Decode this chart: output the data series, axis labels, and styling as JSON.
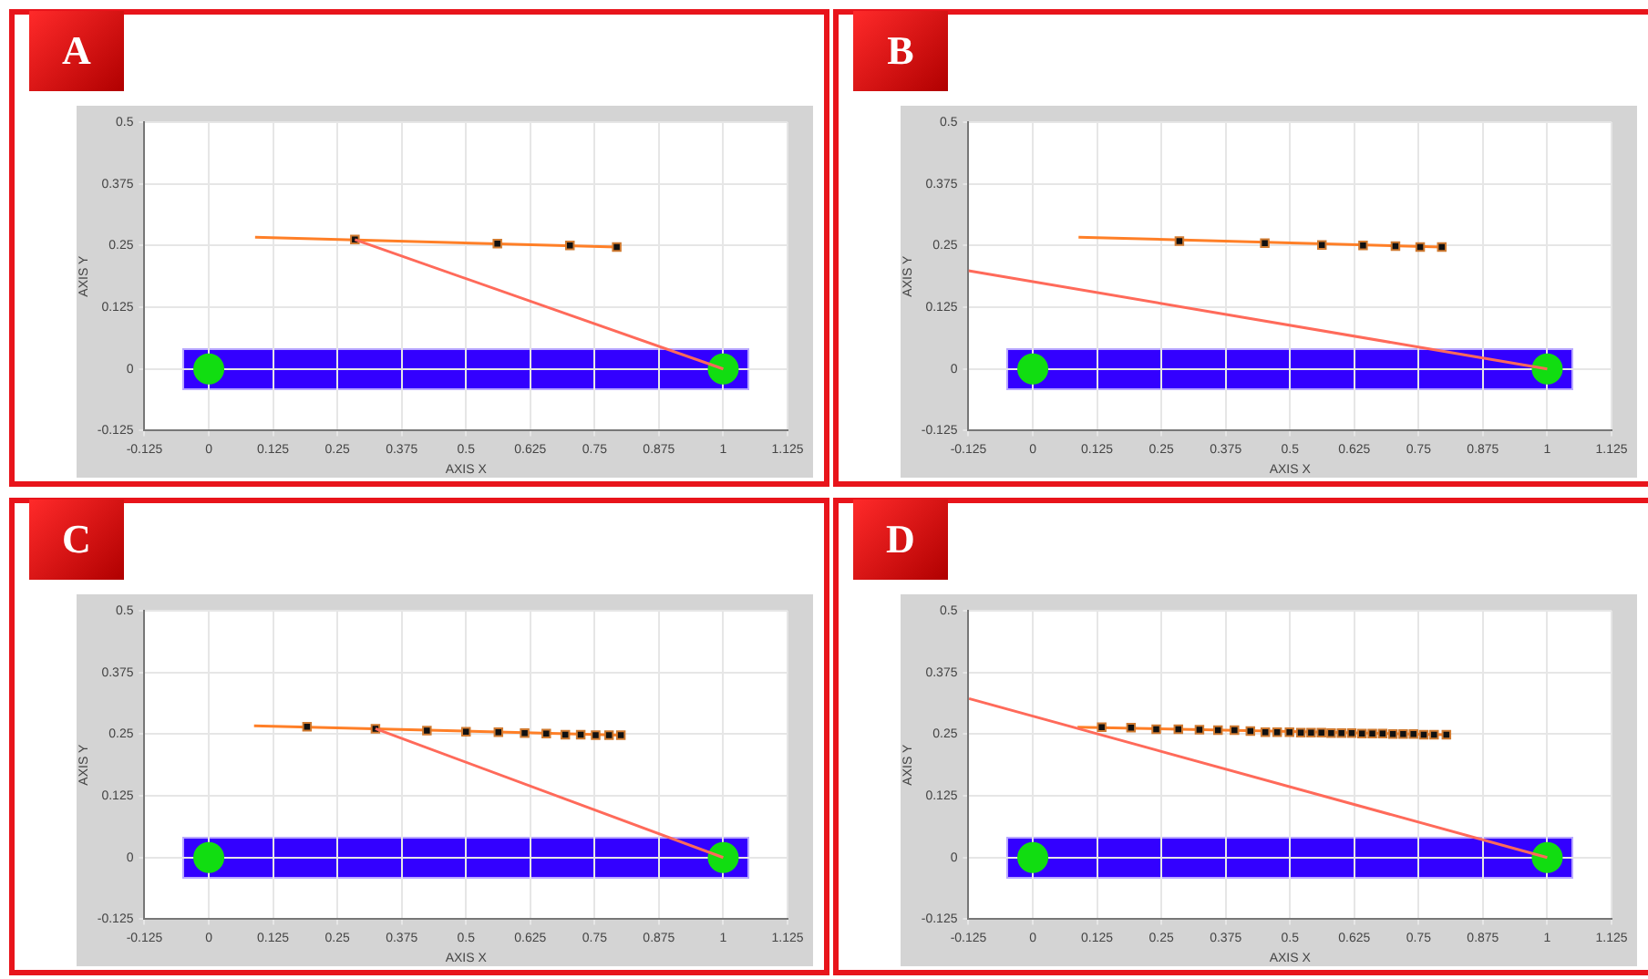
{
  "chart_data": [
    {
      "type": "scatter",
      "title": "A",
      "xlabel": "AXIS X",
      "ylabel": "AXIS Y",
      "xlim": [
        -0.125,
        1.125
      ],
      "ylim": [
        -0.125,
        0.5
      ],
      "xticks": [
        -0.125,
        0,
        0.125,
        0.25,
        0.375,
        0.5,
        0.625,
        0.75,
        0.875,
        1,
        1.125
      ],
      "yticks": [
        -0.125,
        0,
        0.125,
        0.25,
        0.375,
        0.5
      ],
      "grid": true,
      "legend": false,
      "series": [
        {
          "type": "scatter",
          "color": "#11dd11",
          "marker": "circle",
          "x": [
            0,
            1
          ],
          "values": [
            0,
            0
          ]
        },
        {
          "type": "line",
          "color": "#ff7f27",
          "marker": "none",
          "line_style": "solid",
          "x": [
            0.09,
            0.793
          ],
          "values": [
            0.267,
            0.247
          ]
        },
        {
          "type": "scatter",
          "color": "#111111",
          "marker": "square",
          "x": [
            0.284,
            0.561,
            0.702,
            0.793
          ],
          "values": [
            0.262,
            0.254,
            0.25,
            0.247
          ]
        },
        {
          "type": "line",
          "color": "#ff6a5a",
          "marker": "none",
          "line_style": "solid",
          "x": [
            0.284,
            1
          ],
          "values": [
            0.262,
            0
          ]
        }
      ]
    },
    {
      "type": "scatter",
      "title": "B",
      "xlabel": "AXIS X",
      "ylabel": "AXIS Y",
      "xlim": [
        -0.125,
        1.125
      ],
      "ylim": [
        -0.125,
        0.5
      ],
      "xticks": [
        -0.125,
        0,
        0.125,
        0.25,
        0.375,
        0.5,
        0.625,
        0.75,
        0.875,
        1,
        1.125
      ],
      "yticks": [
        -0.125,
        0,
        0.125,
        0.25,
        0.375,
        0.5
      ],
      "grid": true,
      "legend": false,
      "series": [
        {
          "type": "scatter",
          "color": "#11dd11",
          "marker": "circle",
          "x": [
            0,
            1
          ],
          "values": [
            0,
            0
          ]
        },
        {
          "type": "line",
          "color": "#ff7f27",
          "marker": "none",
          "line_style": "solid",
          "x": [
            0.089,
            0.795
          ],
          "values": [
            0.267,
            0.247
          ]
        },
        {
          "type": "scatter",
          "color": "#111111",
          "marker": "square",
          "x": [
            0.285,
            0.451,
            0.562,
            0.642,
            0.705,
            0.753,
            0.795
          ],
          "values": [
            0.259,
            0.255,
            0.251,
            0.25,
            0.249,
            0.247,
            0.247
          ]
        },
        {
          "type": "line",
          "color": "#ff6a5a",
          "marker": "none",
          "line_style": "solid",
          "x": [
            -0.125,
            1
          ],
          "values": [
            0.199,
            0
          ]
        }
      ]
    },
    {
      "type": "scatter",
      "title": "C",
      "xlabel": "AXIS X",
      "ylabel": "AXIS Y",
      "xlim": [
        -0.125,
        1.125
      ],
      "ylim": [
        -0.125,
        0.5
      ],
      "xticks": [
        -0.125,
        0,
        0.125,
        0.25,
        0.375,
        0.5,
        0.625,
        0.75,
        0.875,
        1,
        1.125
      ],
      "yticks": [
        -0.125,
        0,
        0.125,
        0.25,
        0.375,
        0.5
      ],
      "grid": true,
      "legend": false,
      "series": [
        {
          "type": "scatter",
          "color": "#11dd11",
          "marker": "circle",
          "x": [
            0,
            1
          ],
          "values": [
            0,
            0
          ]
        },
        {
          "type": "line",
          "color": "#ff7f27",
          "marker": "none",
          "line_style": "solid",
          "x": [
            0.088,
            0.801
          ],
          "values": [
            0.267,
            0.248
          ]
        },
        {
          "type": "scatter",
          "color": "#111111",
          "marker": "square",
          "x": [
            0.191,
            0.324,
            0.424,
            0.5,
            0.563,
            0.614,
            0.656,
            0.693,
            0.723,
            0.752,
            0.778,
            0.801
          ],
          "values": [
            0.265,
            0.261,
            0.257,
            0.255,
            0.254,
            0.252,
            0.251,
            0.249,
            0.249,
            0.248,
            0.248,
            0.248
          ]
        },
        {
          "type": "line",
          "color": "#ff6a5a",
          "marker": "none",
          "line_style": "solid",
          "x": [
            0.324,
            1
          ],
          "values": [
            0.261,
            0
          ]
        }
      ]
    },
    {
      "type": "scatter",
      "title": "D",
      "xlabel": "AXIS X",
      "ylabel": "AXIS Y",
      "xlim": [
        -0.125,
        1.125
      ],
      "ylim": [
        -0.125,
        0.5
      ],
      "xticks": [
        -0.125,
        0,
        0.125,
        0.25,
        0.375,
        0.5,
        0.625,
        0.75,
        0.875,
        1,
        1.125
      ],
      "yticks": [
        -0.125,
        0,
        0.125,
        0.25,
        0.375,
        0.5
      ],
      "grid": true,
      "legend": false,
      "series": [
        {
          "type": "scatter",
          "color": "#11dd11",
          "marker": "circle",
          "x": [
            0,
            1
          ],
          "values": [
            0,
            0
          ]
        },
        {
          "type": "line",
          "color": "#ff7f27",
          "marker": "none",
          "line_style": "solid",
          "x": [
            0.087,
            0.804
          ],
          "values": [
            0.264,
            0.249
          ]
        },
        {
          "type": "scatter",
          "color": "#111111",
          "marker": "square",
          "x": [
            0.134,
            0.191,
            0.24,
            0.283,
            0.324,
            0.36,
            0.392,
            0.423,
            0.452,
            0.475,
            0.499,
            0.521,
            0.541,
            0.561,
            0.58,
            0.6,
            0.62,
            0.64,
            0.66,
            0.68,
            0.7,
            0.72,
            0.74,
            0.76,
            0.78,
            0.804
          ],
          "values": [
            0.264,
            0.263,
            0.26,
            0.26,
            0.259,
            0.258,
            0.258,
            0.256,
            0.254,
            0.254,
            0.254,
            0.253,
            0.253,
            0.253,
            0.252,
            0.252,
            0.252,
            0.251,
            0.251,
            0.251,
            0.25,
            0.25,
            0.25,
            0.249,
            0.249,
            0.249
          ]
        },
        {
          "type": "line",
          "color": "#ff6a5a",
          "marker": "none",
          "line_style": "solid",
          "x": [
            -0.124,
            1
          ],
          "values": [
            0.322,
            0
          ]
        }
      ]
    }
  ]
}
